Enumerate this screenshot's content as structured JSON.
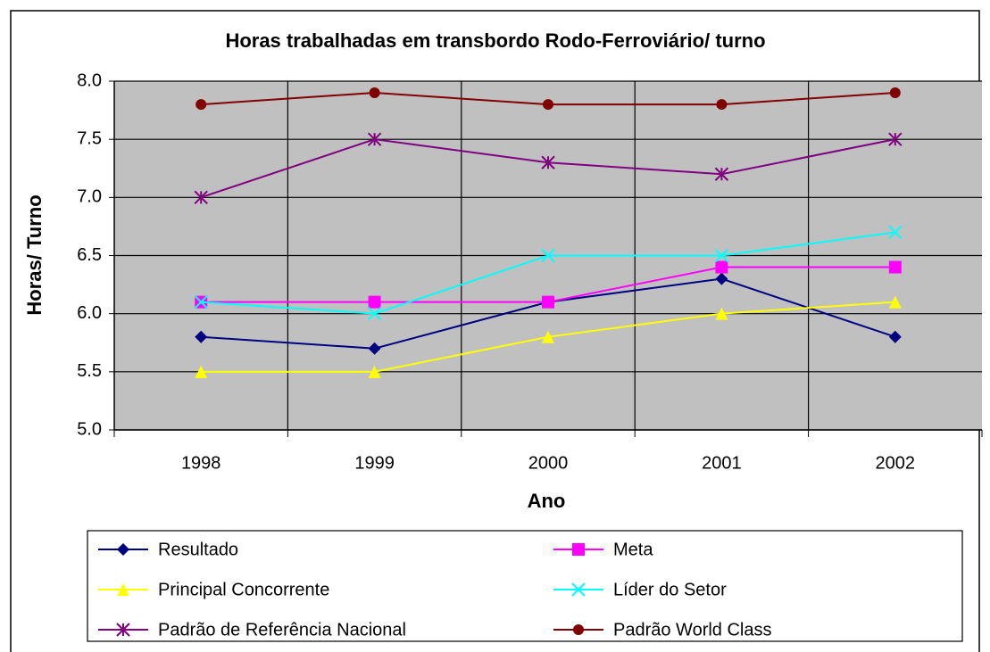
{
  "chart_data": {
    "type": "line",
    "title": "Horas trabalhadas em transbordo Rodo-Ferroviário/ turno",
    "x_label": "Ano",
    "y_label": "Horas/ Turno",
    "categories": [
      "1998",
      "1999",
      "2000",
      "2001",
      "2002"
    ],
    "ylim": [
      5,
      8
    ],
    "yticks": [
      {
        "value": 5,
        "label": "5.0"
      },
      {
        "value": 5.5,
        "label": "5.5"
      },
      {
        "value": 6,
        "label": "6.0"
      },
      {
        "value": 6.5,
        "label": "6.5"
      },
      {
        "value": 7,
        "label": "7.0"
      },
      {
        "value": 7.5,
        "label": "7.5"
      },
      {
        "value": 8,
        "label": "8.0"
      }
    ],
    "grid": true,
    "legend": "bottom",
    "series": [
      {
        "name": "Resultado",
        "color": "#000080",
        "marker": "diamond",
        "values": [
          5.8,
          5.7,
          6.1,
          6.3,
          5.8
        ]
      },
      {
        "name": "Meta",
        "color": "#ff00ff",
        "marker": "square",
        "values": [
          6.1,
          6.1,
          6.1,
          6.4,
          6.4
        ]
      },
      {
        "name": "Principal Concorrente",
        "color": "#ffff00",
        "marker": "triangle",
        "values": [
          5.5,
          5.5,
          5.8,
          6.0,
          6.1
        ]
      },
      {
        "name": "Líder do Setor",
        "color": "#00ffff",
        "marker": "x",
        "values": [
          6.1,
          6.0,
          6.5,
          6.5,
          6.7
        ]
      },
      {
        "name": "Padrão de Referência Nacional",
        "color": "#800080",
        "marker": "star",
        "values": [
          7.0,
          7.5,
          7.3,
          7.2,
          7.5
        ]
      },
      {
        "name": "Padrão World Class",
        "color": "#800000",
        "marker": "circle",
        "values": [
          7.8,
          7.9,
          7.8,
          7.8,
          7.9
        ]
      }
    ]
  }
}
